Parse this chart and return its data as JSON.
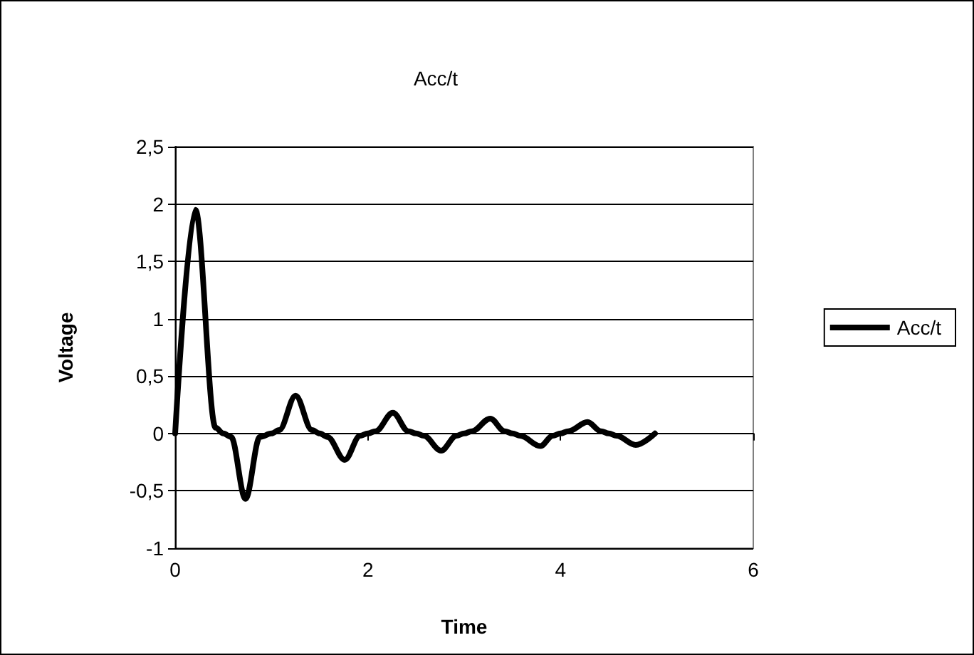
{
  "chart_data": {
    "type": "line",
    "title": "Acc/t",
    "xlabel": "Time",
    "ylabel": "Voltage",
    "xlim": [
      0,
      6
    ],
    "xticks": [
      0,
      2,
      4,
      6
    ],
    "ylim": [
      -1,
      2.5
    ],
    "yticks": [
      {
        "value": -1,
        "label": "-1"
      },
      {
        "value": -0.5,
        "label": "-0,5"
      },
      {
        "value": 0,
        "label": "0"
      },
      {
        "value": 0.5,
        "label": "0,5"
      },
      {
        "value": 1,
        "label": "1"
      },
      {
        "value": 1.5,
        "label": "1,5"
      },
      {
        "value": 2,
        "label": "2"
      },
      {
        "value": 2.5,
        "label": "2,5"
      }
    ],
    "grid": "y",
    "legend": "right",
    "marker": "none",
    "line_style": "solid",
    "series": [
      {
        "name": "Acc/t",
        "color": "#000000",
        "x": [
          0,
          0.21,
          0.42,
          0.5,
          0.58,
          0.73,
          0.88,
          1,
          1.08,
          1.25,
          1.42,
          1.5,
          1.58,
          1.76,
          1.92,
          2,
          2.08,
          2.26,
          2.42,
          2.5,
          2.58,
          2.76,
          2.92,
          3,
          3.08,
          3.27,
          3.42,
          3.5,
          3.58,
          3.79,
          3.92,
          4,
          4.08,
          4.28,
          4.42,
          4.5,
          4.58,
          4.78,
          4.98
        ],
        "values": [
          0,
          1.95,
          0.05,
          0,
          -0.03,
          -0.57,
          -0.03,
          0,
          0.03,
          0.33,
          0.03,
          0,
          -0.03,
          -0.23,
          -0.02,
          0,
          0.02,
          0.18,
          0.02,
          0,
          -0.02,
          -0.15,
          -0.02,
          0,
          0.02,
          0.13,
          0.02,
          0,
          -0.02,
          -0.11,
          -0.02,
          0,
          0.02,
          0.1,
          0.02,
          0,
          -0.02,
          -0.1,
          0
        ]
      }
    ]
  }
}
